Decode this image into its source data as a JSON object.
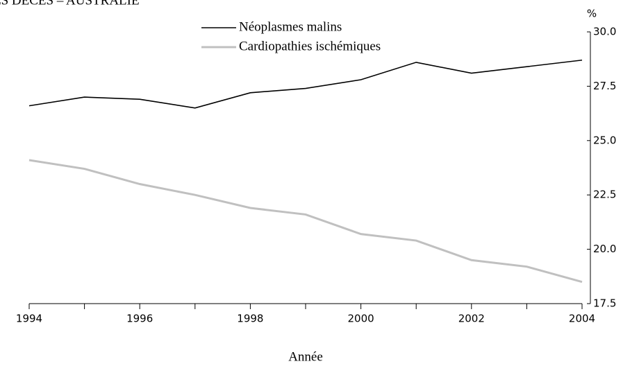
{
  "chart_data": {
    "type": "line",
    "title": "ES DÉCÈS – AUSTRALIE",
    "xlabel": "Année",
    "ylabel": "%",
    "x": [
      1994,
      1995,
      1996,
      1997,
      1998,
      1999,
      2000,
      2001,
      2002,
      2003,
      2004
    ],
    "series": [
      {
        "name": "Néoplasmes malins",
        "color": "#000000",
        "values": [
          26.6,
          27.0,
          26.9,
          26.5,
          27.2,
          27.4,
          27.8,
          28.6,
          28.1,
          28.4,
          28.7
        ]
      },
      {
        "name": "Cardiopathies ischémiques",
        "color": "#c0c0c0",
        "values": [
          24.1,
          23.7,
          23.0,
          22.5,
          21.9,
          21.6,
          20.7,
          20.4,
          19.5,
          19.2,
          18.5
        ]
      }
    ],
    "xlim": [
      1994,
      2004
    ],
    "xticks": [
      1994,
      1996,
      1998,
      2000,
      2002,
      2004
    ],
    "ylim": [
      17.5,
      30
    ],
    "yticks": [
      17.5,
      {
        "value": 20,
        "label": "20.0"
      },
      22.5,
      {
        "value": 25,
        "label": "25.0"
      },
      27.5,
      {
        "value": 30,
        "label": "30.0"
      }
    ],
    "legend": "top",
    "y_axis_side": "right"
  }
}
